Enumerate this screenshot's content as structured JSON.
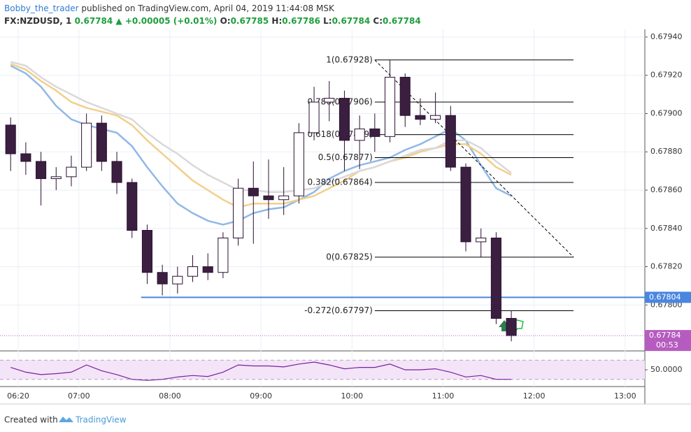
{
  "header": {
    "author": "Bobby_the_trader",
    "published": "published on TradingView.com, April 04, 2019 11:44:08 MSK",
    "symbol": "FX:NZDUSD, 1",
    "last": "0.67784",
    "change": "+0.00005 (+0.01%)",
    "ohlc": [
      {
        "label": "O:",
        "value": "0.67785"
      },
      {
        "label": "H:",
        "value": "0.67786"
      },
      {
        "label": "L:",
        "value": "0.67784"
      },
      {
        "label": "C:",
        "value": "0.67784"
      }
    ]
  },
  "footer": {
    "created": "Created with",
    "brand": "TradingView"
  },
  "chart_data": {
    "type": "candlestick",
    "x": [
      "06:10",
      "06:20",
      "06:30",
      "06:40",
      "06:50",
      "07:00",
      "07:10",
      "07:20",
      "07:30",
      "07:40",
      "07:50",
      "08:00",
      "08:10",
      "08:20",
      "08:30",
      "08:40",
      "08:50",
      "09:00",
      "09:10",
      "09:20",
      "09:30",
      "09:40",
      "09:50",
      "10:00",
      "10:10",
      "10:20",
      "10:30",
      "10:40",
      "10:50",
      "11:00",
      "11:10",
      "11:20",
      "11:30",
      "11:40"
    ],
    "open": [
      0.67894,
      0.67879,
      0.67875,
      0.67866,
      0.67867,
      0.67872,
      0.67895,
      0.67875,
      0.67864,
      0.67839,
      0.67817,
      0.67811,
      0.67815,
      0.6782,
      0.67817,
      0.67835,
      0.67861,
      0.67857,
      0.67855,
      0.67857,
      0.6789,
      0.67906,
      0.67908,
      0.67886,
      0.67892,
      0.67888,
      0.67919,
      0.67899,
      0.67897,
      0.67899,
      0.67872,
      0.67833,
      0.67835,
      0.67793
    ],
    "high": [
      0.67898,
      0.67885,
      0.6788,
      0.67872,
      0.67878,
      0.679,
      0.67899,
      0.6788,
      0.67866,
      0.67842,
      0.67821,
      0.6782,
      0.67826,
      0.67827,
      0.67838,
      0.67866,
      0.67875,
      0.67876,
      0.67872,
      0.67895,
      0.67914,
      0.67917,
      0.67912,
      0.67899,
      0.679,
      0.67928,
      0.67921,
      0.67908,
      0.67911,
      0.67904,
      0.67874,
      0.6784,
      0.67838,
      0.67797
    ],
    "low": [
      0.6787,
      0.67868,
      0.67852,
      0.6786,
      0.67862,
      0.6787,
      0.6787,
      0.67858,
      0.67835,
      0.67811,
      0.67805,
      0.67806,
      0.67812,
      0.67813,
      0.67814,
      0.67831,
      0.67832,
      0.67845,
      0.67847,
      0.67853,
      0.67886,
      0.67896,
      0.6787,
      0.67871,
      0.6788,
      0.67885,
      0.67893,
      0.67894,
      0.67895,
      0.6787,
      0.67828,
      0.67825,
      0.6779,
      0.67781
    ],
    "close": [
      0.67879,
      0.67875,
      0.67866,
      0.67867,
      0.67872,
      0.67895,
      0.67875,
      0.67864,
      0.67839,
      0.67817,
      0.67811,
      0.67815,
      0.6782,
      0.67817,
      0.67835,
      0.67861,
      0.67857,
      0.67855,
      0.67857,
      0.6789,
      0.67906,
      0.67908,
      0.67886,
      0.67892,
      0.67888,
      0.67919,
      0.67899,
      0.67897,
      0.67899,
      0.67872,
      0.67833,
      0.67835,
      0.67793,
      0.67784
    ],
    "up_color": "#ffffff",
    "down_color": "#3b1f40",
    "outline_color": "#2b1030",
    "xlim": [
      "06:08",
      "13:13"
    ],
    "xticks": [
      "06:20",
      "07:00",
      "08:00",
      "09:00",
      "10:00",
      "11:00",
      "12:00",
      "13:00"
    ],
    "ylim": [
      0.67776,
      0.67944
    ],
    "yticks": [
      {
        "value": 0.678,
        "label": "0.67800"
      },
      {
        "value": 0.6782,
        "label": "0.67820"
      },
      {
        "value": 0.6784,
        "label": "0.67840"
      },
      {
        "value": 0.6786,
        "label": "0.67860"
      },
      {
        "value": 0.6788,
        "label": "0.67880"
      },
      {
        "value": 0.679,
        "label": "0.67900"
      },
      {
        "value": 0.6792,
        "label": "0.67920"
      },
      {
        "value": 0.6794,
        "label": "0.67940"
      }
    ],
    "grid": true,
    "ma": [
      {
        "color": "#91b8e6",
        "values": [
          0.67925,
          0.67921,
          0.67914,
          0.67904,
          0.67897,
          0.67894,
          0.67892,
          0.6789,
          0.67883,
          0.67872,
          0.67862,
          0.67853,
          0.67848,
          0.67844,
          0.67842,
          0.67844,
          0.67848,
          0.6785,
          0.67851,
          0.67855,
          0.67859,
          0.67866,
          0.6787,
          0.67873,
          0.67875,
          0.67877,
          0.67881,
          0.67884,
          0.67888,
          0.67892,
          0.67886,
          0.67873,
          0.67861,
          0.67857
        ]
      },
      {
        "color": "#f2cf8a",
        "values": [
          0.67926,
          0.67923,
          0.67917,
          0.67912,
          0.67906,
          0.67903,
          0.67901,
          0.67899,
          0.67894,
          0.67886,
          0.67879,
          0.67872,
          0.67865,
          0.6786,
          0.67855,
          0.67851,
          0.67853,
          0.67853,
          0.67853,
          0.67855,
          0.67857,
          0.67861,
          0.67865,
          0.6787,
          0.67872,
          0.67875,
          0.67877,
          0.6788,
          0.67882,
          0.67884,
          0.67884,
          0.67879,
          0.67872,
          0.67868
        ]
      },
      {
        "color": "#d9d9d9",
        "values": [
          0.67927,
          0.67925,
          0.67919,
          0.67914,
          0.6791,
          0.67906,
          0.67903,
          0.679,
          0.67897,
          0.6789,
          0.67884,
          0.67879,
          0.67873,
          0.67868,
          0.67864,
          0.6786,
          0.6786,
          0.67859,
          0.67859,
          0.6786,
          0.67861,
          0.67864,
          0.67867,
          0.6787,
          0.67872,
          0.67875,
          0.67878,
          0.67881,
          0.67882,
          0.67886,
          0.67886,
          0.67882,
          0.67875,
          0.67869
        ]
      }
    ],
    "hline": {
      "x": "07:41",
      "value": 0.67804,
      "color": "#4a86e0"
    },
    "last": {
      "value": 0.67784,
      "countdown": "00:53",
      "color": "#b65cc0"
    },
    "fib": {
      "x": [
        "10:15",
        "12:26"
      ],
      "color": "#000000",
      "levels": [
        {
          "label": "1(0.67928)",
          "value": 0.67928
        },
        {
          "label": "0.786(0.67906)",
          "value": 0.67906
        },
        {
          "label": "0.618(0.67889)",
          "value": 0.67889
        },
        {
          "label": "0.5(0.67877)",
          "value": 0.67877
        },
        {
          "label": "0.382(0.67864)",
          "value": 0.67864
        },
        {
          "label": "0(0.67825)",
          "value": 0.67825
        },
        {
          "label": "-0.272(0.67797)",
          "value": 0.67797
        }
      ]
    },
    "rsi": {
      "color": "#7b1fa2",
      "band_color": "#f3e4f7",
      "ylim": [
        15,
        85
      ],
      "bands": [
        30,
        70
      ],
      "yticks": [
        {
          "value": 50,
          "label": "50.0000"
        }
      ],
      "values": [
        55,
        45,
        40,
        42,
        45,
        60,
        48,
        40,
        30,
        28,
        30,
        35,
        38,
        36,
        45,
        60,
        58,
        58,
        56,
        62,
        66,
        60,
        52,
        55,
        55,
        62,
        50,
        50,
        52,
        45,
        35,
        38,
        30,
        30
      ]
    }
  }
}
